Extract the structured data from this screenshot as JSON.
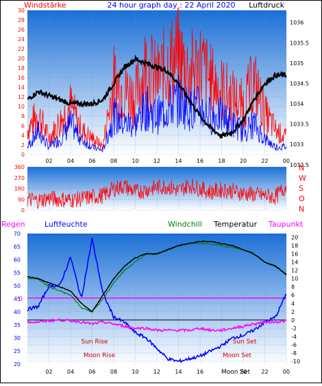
{
  "header": {
    "left_label": "Windstärke",
    "title": "24 hour graph day : 22 April 2020",
    "right_label": "Luftdruck"
  },
  "colors": {
    "wind_gust": "#ff0000",
    "wind_speed": "#0000ff",
    "pressure": "#000000",
    "direction": "#ff0000",
    "humidity": "#0000ff",
    "temperature": "#000000",
    "windchill": "#008000",
    "dewpoint": "#ff00ff",
    "rain_line": "#ff00ff",
    "bg_top": "#1a6fd6",
    "bg_bottom": "#ffffff"
  },
  "hour_ticks": [
    "02",
    "04",
    "06",
    "08",
    "10",
    "12",
    "14",
    "16",
    "18",
    "20",
    "22",
    "00"
  ],
  "chart_data": [
    {
      "type": "line",
      "title": "24 hour graph day : 22 April 2020",
      "x_hours": [
        0,
        1,
        2,
        3,
        4,
        5,
        6,
        7,
        8,
        9,
        10,
        11,
        12,
        13,
        14,
        15,
        16,
        17,
        18,
        19,
        20,
        21,
        22,
        23,
        24
      ],
      "y_left": {
        "label": "Windstärke",
        "range": [
          0,
          30
        ],
        "ticks": [
          "0",
          "2",
          "4",
          "6",
          "8",
          "10",
          "12",
          "14",
          "16",
          "18",
          "20",
          "22",
          "24",
          "26",
          "28",
          "30"
        ]
      },
      "y_right": {
        "label": "Luftdruck",
        "range": [
          1032.75,
          1026.3
        ],
        "ticks": [
          "1032.5",
          "1033",
          "1033.5",
          "1034",
          "1034.5",
          "1035",
          "1035.5",
          "1036"
        ],
        "display": [
          "1032.5",
          "1033",
          "1033.5",
          "1034",
          "1034.5",
          "1035",
          "1035.5",
          "1036"
        ]
      },
      "series": [
        {
          "name": "Luftdruck",
          "axis": "right",
          "values": [
            1034.1,
            1034.3,
            1034.2,
            1034.1,
            1034.0,
            1034.0,
            1034.0,
            1034.1,
            1034.5,
            1034.9,
            1035.1,
            1035.0,
            1034.9,
            1034.8,
            1034.5,
            1034.1,
            1033.7,
            1033.4,
            1033.2,
            1033.3,
            1033.6,
            1034.1,
            1034.5,
            1034.7,
            1034.7
          ]
        },
        {
          "values": [
            6,
            10,
            4,
            8,
            12,
            6,
            4,
            2,
            18,
            16,
            14,
            22,
            18,
            22,
            24,
            20,
            22,
            18,
            16,
            14,
            12,
            18,
            10,
            6,
            4
          ]
        },
        {
          "values": [
            2,
            6,
            2,
            4,
            8,
            4,
            2,
            1,
            10,
            8,
            8,
            12,
            10,
            12,
            14,
            12,
            12,
            10,
            10,
            8,
            6,
            8,
            4,
            2,
            2
          ]
        }
      ]
    },
    {
      "type": "line",
      "y_right": {
        "labels": [
          "N",
          "W",
          "S",
          "O",
          "N"
        ]
      },
      "y_left": {
        "range": [
          0,
          360
        ],
        "ticks": [
          "0",
          "90",
          "180",
          "270",
          "360"
        ]
      },
      "series": [
        {
          "values": [
            90,
            80,
            100,
            90,
            85,
            95,
            110,
            120,
            180,
            200,
            150,
            170,
            190,
            200,
            160,
            210,
            180,
            150,
            170,
            160,
            140,
            130,
            120,
            110,
            200
          ]
        }
      ]
    },
    {
      "type": "line",
      "labels": {
        "regen": "Regen",
        "luftfeuchte": "Luftfeuchte",
        "windchill": "Windchill",
        "temperatur": "Temperatur",
        "taupunkt": "Taupunkt"
      },
      "y_left": {
        "range": [
          20,
          70
        ],
        "ticks": [
          "20",
          "25",
          "30",
          "35",
          "40",
          "45",
          "50",
          "55",
          "60",
          "65",
          "70"
        ]
      },
      "y_right": {
        "range": [
          -10,
          20
        ],
        "ticks": [
          "-10",
          "-8",
          "-6",
          "-4",
          "-2",
          "0",
          "2",
          "4",
          "6",
          "8",
          "10",
          "12",
          "14",
          "16",
          "18",
          "20"
        ]
      },
      "rain_marker": "0",
      "annotations": {
        "sun_rise": "Sun Rise",
        "moon_rise": "Moon Rise",
        "sun_set": "Sun Set",
        "moon_set": "Moon Set",
        "moon_extra": "Moon Set"
      },
      "series": [
        {
          "name": "Luftfeuchte",
          "axis": "left",
          "values": [
            41,
            42,
            50,
            50,
            61,
            45,
            68,
            47,
            38,
            36,
            32,
            30,
            26,
            22,
            21,
            22,
            23,
            25,
            27,
            30,
            31,
            33,
            36,
            38,
            47
          ]
        },
        {
          "name": "Temperatur",
          "axis": "right",
          "values": [
            10.5,
            10,
            9,
            8,
            7,
            4,
            2,
            6,
            10,
            13,
            15,
            16,
            16,
            17,
            18,
            18.5,
            19,
            19,
            18.5,
            18,
            17,
            16,
            14,
            13,
            11
          ]
        },
        {
          "name": "Windchill",
          "axis": "right",
          "values": [
            10,
            10,
            8,
            7,
            6,
            3,
            2,
            5,
            9,
            12,
            14,
            16,
            16,
            17,
            18,
            18.5,
            18.5,
            18.5,
            18,
            17.5,
            17,
            16,
            14,
            13,
            11
          ]
        },
        {
          "name": "Taupunkt",
          "axis": "right",
          "values": [
            -0.5,
            -0.5,
            -0.2,
            0,
            -0.2,
            -0.5,
            -1,
            -0.5,
            -1,
            -1.5,
            -2,
            -2,
            -2.5,
            -2.5,
            -2.5,
            -2.5,
            -2,
            -2.5,
            -2.5,
            -2,
            -1.5,
            -1,
            -0.5,
            -0.5,
            -0.2
          ]
        }
      ]
    }
  ]
}
